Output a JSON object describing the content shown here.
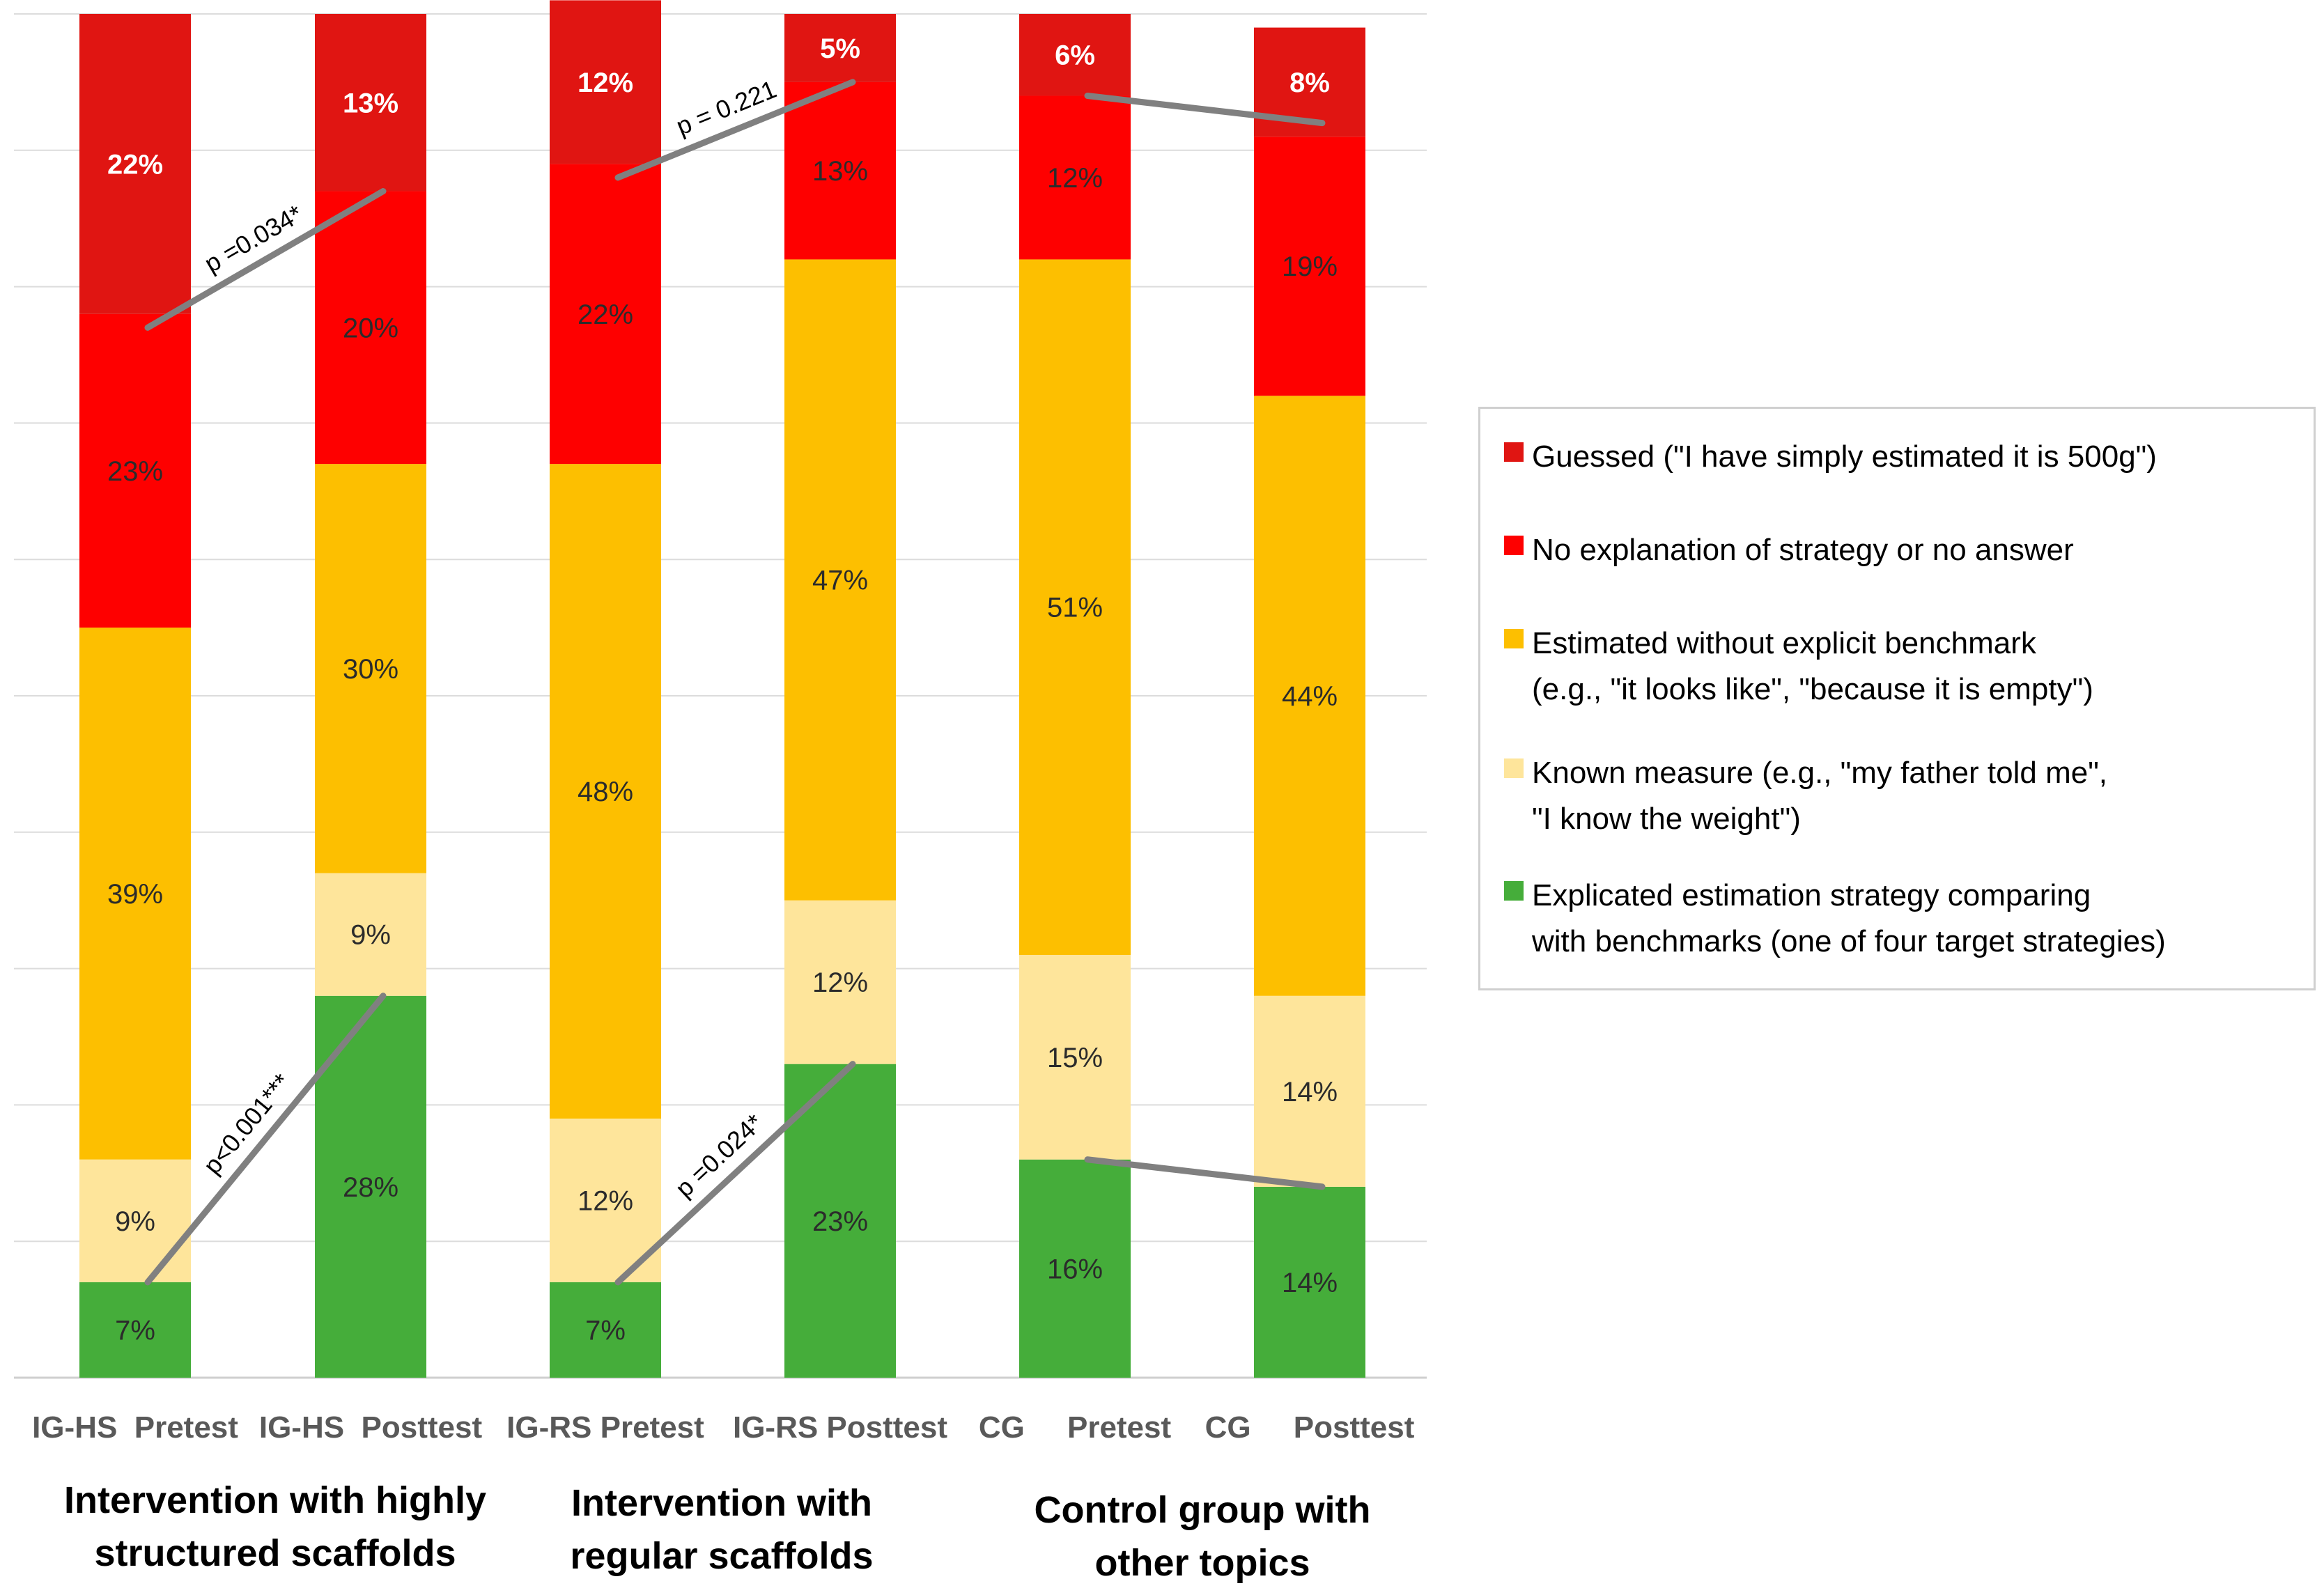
{
  "chart_data": {
    "type": "bar",
    "stacked": true,
    "normalized": true,
    "ylim": [
      0,
      100
    ],
    "grid": true,
    "legend_position": "right",
    "categories": [
      "IG-HS  Pretest",
      "IG-HS  Posttest",
      "IG-RS Pretest",
      "IG-RS Posttest",
      "CG     Pretest",
      "CG     Posttest"
    ],
    "series": [
      {
        "key": "explicated",
        "name": "Explicated estimation strategy comparing\nwith benchmarks (one of four target strategies)",
        "color": "#45ad3a",
        "text_color": "#2b2b2b",
        "values": [
          7,
          28,
          7,
          23,
          16,
          14
        ],
        "labels": [
          "7%",
          "28%",
          "7%",
          "23%",
          "16%",
          "14%"
        ]
      },
      {
        "key": "known",
        "name": "Known measure (e.g., \"my father told me\",\n\"I know the weight\")",
        "color": "#fee59b",
        "text_color": "#2b2b2b",
        "values": [
          9,
          9,
          12,
          12,
          15,
          14
        ],
        "labels": [
          "9%",
          "9%",
          "12%",
          "12%",
          "15%",
          "14%"
        ]
      },
      {
        "key": "estimated",
        "name": "Estimated without explicit benchmark\n(e.g., \"it looks like\", \"because it is empty\")",
        "color": "#fdbf00",
        "text_color": "#2b2b2b",
        "values": [
          39,
          30,
          48,
          47,
          51,
          44
        ],
        "labels": [
          "39%",
          "30%",
          "48%",
          "47%",
          "51%",
          "44%"
        ]
      },
      {
        "key": "noexpl",
        "name": "No explanation of strategy or no answer",
        "color": "#fe0000",
        "text_color": "#2b2b2b",
        "values": [
          23,
          20,
          22,
          13,
          12,
          19
        ],
        "labels": [
          "23%",
          "20%",
          "22%",
          "13%",
          "12%",
          "19%"
        ]
      },
      {
        "key": "guessed",
        "name": "Guessed (\"I have simply estimated it is 500g\")",
        "color": "#e01512",
        "text_color": "#ffffff",
        "values": [
          22,
          13,
          12,
          5,
          6,
          8
        ],
        "labels": [
          "22%",
          "13%",
          "12%",
          "5%",
          "6%",
          "8%"
        ]
      }
    ],
    "group_labels": [
      "Intervention with highly\nstructured scaffolds",
      "Intervention with\nregular scaffolds",
      "Control group with\nother topics"
    ],
    "annotations": [
      {
        "text": "p =0.034*",
        "from_bar": 0,
        "to_bar": 1,
        "from_value": 77,
        "to_value": 87
      },
      {
        "text": "p = 0.221",
        "from_bar": 2,
        "to_bar": 3,
        "from_value": 88,
        "to_value": 95
      },
      {
        "text": "",
        "from_bar": 4,
        "to_bar": 5,
        "from_value": 94,
        "to_value": 92
      },
      {
        "text": "p<0.001***",
        "from_bar": 0,
        "to_bar": 1,
        "from_value": 7,
        "to_value": 28
      },
      {
        "text": "p =0.024*",
        "from_bar": 2,
        "to_bar": 3,
        "from_value": 7,
        "to_value": 23
      },
      {
        "text": "",
        "from_bar": 4,
        "to_bar": 5,
        "from_value": 16,
        "to_value": 14
      }
    ]
  }
}
